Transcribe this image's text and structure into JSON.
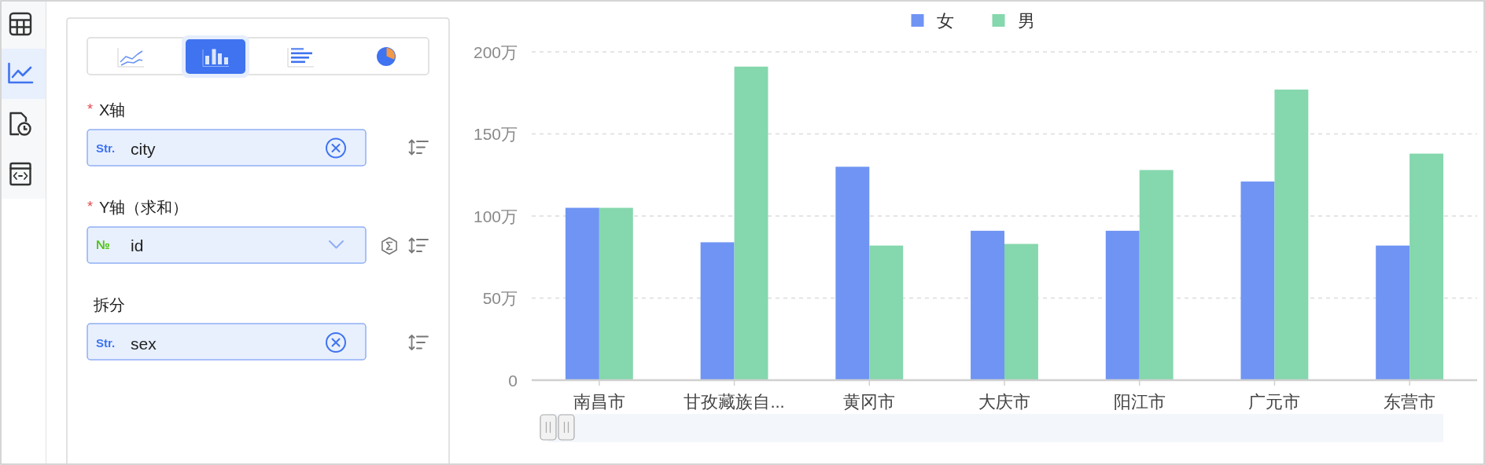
{
  "chart_data": [
    {
      "type": "other",
      "annotations": [
        "*",
        "X轴",
        "Str.",
        "city",
        "*",
        "Y轴（求和）",
        "№",
        "id",
        "拆分",
        "Str.",
        "sex"
      ]
    },
    {
      "type": "bar",
      "categories": [
        "南昌市",
        "甘孜藏族自...",
        "黄冈市",
        "大庆市",
        "阳江市",
        "广元市",
        "东营市"
      ],
      "series": [
        {
          "name": "女",
          "color": "#6f94f3",
          "values": [
            105,
            84,
            130,
            91,
            91,
            121,
            82
          ]
        },
        {
          "name": "男",
          "color": "#85d7ad",
          "values": [
            105,
            191,
            82,
            83,
            128,
            177,
            138
          ]
        }
      ],
      "ylim": [
        0,
        200
      ],
      "yticks": [
        0,
        {
          "value": 50,
          "label": "50万"
        },
        {
          "value": 100,
          "label": "100万"
        },
        {
          "value": 150,
          "label": "150万"
        },
        {
          "value": 200,
          "label": "200万"
        }
      ],
      "grid": "y",
      "legend": "top"
    }
  ]
}
